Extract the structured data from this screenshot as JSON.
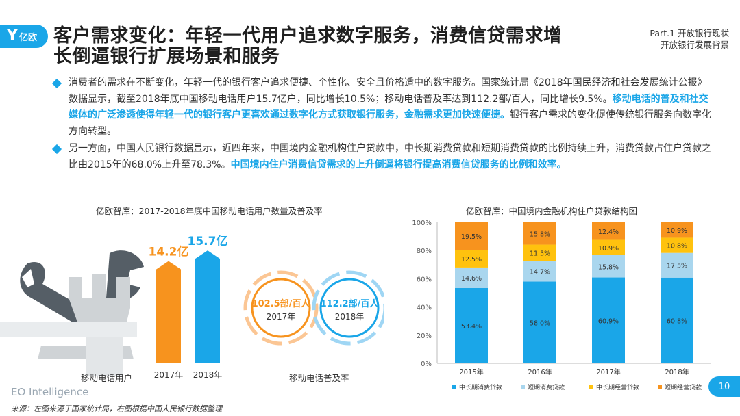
{
  "brand": {
    "logo_text": "亿欧",
    "footer": "EO Intelligence"
  },
  "title": "客户需求变化：年轻一代用户追求数字服务，消费信贷需求增长倒逼银行扩展场景和服务",
  "part": {
    "line1": "Part.1 开放银行现状",
    "line2": "开放银行发展背景"
  },
  "bullets": [
    {
      "text1": "消费者的需求在不断变化，年轻一代的银行客户追求便捷、个性化、安全且价格适中的数字服务。国家统计局《2018年国民经济和社会发展统计公报》数据显示，截至2018年底中国移动电话用户15.7亿户，同比增长10.5%；移动电话普及率达到112.2部/百人，同比增长9.5%。",
      "highlight": "移动电话的普及和社交媒体的广泛渗透使得年轻一代的银行客户更喜欢通过数字化方式获取银行服务，金融需求更加快速便捷。",
      "text2": "银行客户需求的变化促使传统银行服务向数字化方向转型。"
    },
    {
      "text1": "另一方面，中国人民银行数据显示，近四年来，中国境内金融机构住户贷款中，中长期消费贷款和短期消费贷款的比例持续上升，消费贷款占住户贷款之比由2015年的68.0%上升至78.3%。",
      "highlight": "中国境内住户消费信贷需求的上升倒逼将银行提高消费信贷服务的比例和效率。",
      "text2": ""
    }
  ],
  "left_chart": {
    "title": "亿欧智库：2017-2018年底中国移动电话用户数量及普及率",
    "users_label": "移动电话用户",
    "rate_label": "移动电话普及率",
    "colors": {
      "bar2017": "#f7931e",
      "bar2018": "#1aa6e8"
    }
  },
  "right_chart": {
    "title": "亿欧智库：中国境内金融机构住户贷款结构图"
  },
  "source": "来源：左图来源于国家统计局，右图根据中国人民银行数据整理",
  "page_number": "10",
  "chart_data": [
    {
      "type": "bar",
      "categories": [
        "2017年",
        "2018年"
      ],
      "values": [
        14.2,
        15.7
      ],
      "value_labels": [
        "14.2亿",
        "15.7亿"
      ],
      "xlabel": "移动电话用户"
    },
    {
      "type": "pie",
      "categories": [
        "2017年",
        "2018年"
      ],
      "values": [
        102.5,
        112.2
      ],
      "value_labels": [
        "102.5部/百人",
        "112.2部/百人"
      ],
      "xlabel": "移动电话普及率"
    },
    {
      "type": "bar",
      "stacked": true,
      "categories": [
        "2015年",
        "2016年",
        "2017年",
        "2018年"
      ],
      "ylim": [
        0,
        100
      ],
      "yticks": [
        "0%",
        "20%",
        "40%",
        "60%",
        "80%",
        "100%"
      ],
      "legend_position": "bottom",
      "series": [
        {
          "name": "中长期消费贷款",
          "color": "#1aa6e8",
          "values": [
            53.4,
            58.0,
            60.9,
            60.8
          ],
          "labels": [
            "53.4%",
            "58.0%",
            "60.9%",
            "60.8%"
          ]
        },
        {
          "name": "短期消费贷款",
          "color": "#a9d6ee",
          "values": [
            14.6,
            14.7,
            15.8,
            17.5
          ],
          "labels": [
            "14.6%",
            "14.7%",
            "15.8%",
            "17.5%"
          ]
        },
        {
          "name": "中长期经营贷款",
          "color": "#ffc20e",
          "values": [
            12.5,
            11.5,
            10.9,
            10.8
          ],
          "labels": [
            "12.5%",
            "11.5%",
            "10.9%",
            "10.8%"
          ]
        },
        {
          "name": "短期经营贷款",
          "color": "#f7931e",
          "values": [
            19.5,
            15.8,
            12.4,
            10.9
          ],
          "labels": [
            "19.5%",
            "15.8%",
            "12.4%",
            "10.9%"
          ]
        }
      ]
    }
  ]
}
